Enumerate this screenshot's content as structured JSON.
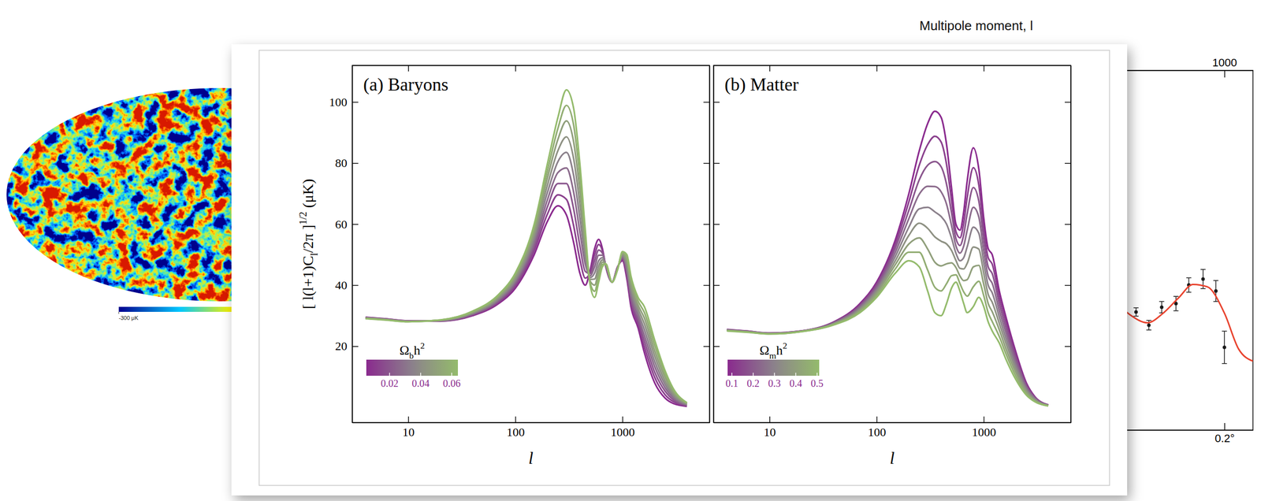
{
  "chart_data": [
    {
      "type": "map",
      "colorbar_range": [
        -300,
        300
      ],
      "colorbar_ticks": [
        {
          "value": -300,
          "label": "-300 μK"
        }
      ]
    },
    {
      "type": "line",
      "title": "(a) Baryons",
      "x_label": "l",
      "y_label": "[ l(l+1)Cl/2π ]1/2 (μK)",
      "log": "x",
      "xlim": [
        3,
        6500
      ],
      "xticks": [
        10,
        100,
        1000
      ],
      "ylim": [
        -5,
        112
      ],
      "yticks": [
        20,
        40,
        60,
        80,
        100
      ],
      "colorbar_label": "Ωbh2",
      "colorbar_range": [
        0.005,
        0.064
      ],
      "colorbar_ticks": [
        0.02,
        0.04,
        0.06
      ],
      "x": [
        4,
        6,
        10,
        20,
        40,
        70,
        100,
        150,
        200,
        250,
        300,
        350,
        400,
        450,
        500,
        550,
        600,
        650,
        700,
        800,
        900,
        1000,
        1100,
        1200,
        1400,
        1600,
        2000,
        2500,
        3000,
        4000
      ],
      "series": [
        {
          "color": "#8a2a8e",
          "values": [
            29.5,
            29.0,
            28.3,
            28.2,
            30.0,
            34.0,
            39.0,
            50.0,
            61.0,
            66.0,
            63.0,
            54.0,
            44.0,
            40.0,
            45.0,
            52.0,
            55.0,
            52.0,
            46.0,
            41.0,
            46.0,
            48.0,
            42,
            33.0,
            26.0,
            18.0,
            8.0,
            3.0,
            1.2,
            0.3
          ]
        },
        {
          "color": "#8a408d",
          "values": [
            29.4,
            29.0,
            28.3,
            28.3,
            30.2,
            34.4,
            39.6,
            51.3,
            63.4,
            69.6,
            68.1,
            59.5,
            48.5,
            42.3,
            44.4,
            50.0,
            53.3,
            51.3,
            46.1,
            41.0,
            45.9,
            48.4,
            43,
            34.3,
            27.3,
            19.9,
            9.8,
            4.1,
            1.8,
            0.5
          ]
        },
        {
          "color": "#8a568d",
          "values": [
            29.4,
            28.9,
            28.2,
            28.3,
            30.4,
            34.8,
            40.3,
            52.5,
            65.8,
            73.3,
            73.3,
            65.0,
            53.0,
            44.5,
            43.8,
            48.0,
            51.5,
            50.5,
            46.3,
            41.0,
            45.8,
            48.8,
            44,
            35.5,
            28.5,
            21.8,
            11.5,
            5.3,
            2.4,
            0.6
          ]
        },
        {
          "color": "#8b6b8c",
          "values": [
            29.3,
            28.9,
            28.2,
            28.4,
            30.6,
            35.1,
            40.9,
            53.8,
            68.1,
            76.9,
            78.4,
            70.5,
            57.5,
            46.8,
            43.1,
            46.0,
            49.8,
            49.8,
            46.4,
            41.0,
            45.6,
            49.1,
            45,
            36.8,
            29.8,
            23.6,
            13.3,
            6.4,
            3.0,
            0.8
          ]
        },
        {
          "color": "#8b808b",
          "values": [
            29.3,
            28.8,
            28.2,
            28.4,
            30.8,
            35.5,
            41.5,
            55.0,
            70.5,
            80.5,
            83.5,
            76.0,
            62.0,
            49.0,
            42.5,
            44.0,
            48.0,
            49.0,
            46.5,
            41.0,
            45.5,
            49.5,
            46,
            38.0,
            31.0,
            25.5,
            15.0,
            7.5,
            3.6,
            0.9
          ]
        },
        {
          "color": "#8e9183",
          "values": [
            29.2,
            28.8,
            28.1,
            28.5,
            30.9,
            35.9,
            42.1,
            56.3,
            72.9,
            84.1,
            88.6,
            81.5,
            66.5,
            51.3,
            41.9,
            42.0,
            46.3,
            48.3,
            46.6,
            41.0,
            45.4,
            49.9,
            47,
            39.3,
            32.3,
            27.4,
            16.8,
            8.6,
            4.2,
            1.1
          ]
        },
        {
          "color": "#909f7b",
          "values": [
            29.1,
            28.7,
            28.1,
            28.5,
            31.1,
            36.3,
            42.8,
            57.5,
            75.3,
            87.8,
            93.8,
            87.0,
            71.0,
            53.5,
            41.3,
            40.0,
            44.5,
            47.5,
            46.8,
            41.0,
            45.3,
            50.3,
            48,
            40.5,
            33.5,
            29.3,
            18.5,
            9.8,
            4.8,
            1.2
          ]
        },
        {
          "color": "#92ad73",
          "values": [
            29.1,
            28.7,
            28.0,
            28.6,
            31.3,
            36.6,
            43.4,
            58.8,
            77.6,
            91.4,
            98.9,
            92.5,
            75.5,
            55.8,
            40.6,
            38.0,
            42.8,
            46.8,
            46.9,
            41.0,
            45.1,
            50.6,
            49,
            41.8,
            34.8,
            31.1,
            20.3,
            10.9,
            5.4,
            1.4
          ]
        },
        {
          "color": "#94bb6c",
          "values": [
            29.0,
            28.6,
            28.0,
            28.6,
            31.5,
            37.0,
            44.0,
            60.0,
            80.0,
            95.0,
            104.0,
            98.0,
            80.0,
            58.0,
            40.0,
            36.0,
            41.0,
            46.0,
            47.0,
            41.0,
            45.0,
            51.0,
            50,
            43.0,
            36.0,
            33.0,
            22.0,
            12.0,
            6.0,
            1.5
          ]
        }
      ]
    },
    {
      "type": "line",
      "title": "(b) Matter",
      "x_label": "l",
      "log": "x",
      "tick_labels": "x",
      "xlim": [
        3,
        6500
      ],
      "xticks": [
        10,
        100,
        1000
      ],
      "ylim": [
        -5,
        112
      ],
      "yticks": [
        20,
        40,
        60,
        80,
        100
      ],
      "colorbar_label": "Ωmh2",
      "colorbar_range": [
        0.08,
        0.51
      ],
      "colorbar_ticks": [
        0.1,
        0.2,
        0.3,
        0.4,
        0.5
      ],
      "x": [
        4,
        6,
        10,
        20,
        40,
        70,
        100,
        150,
        200,
        250,
        300,
        350,
        400,
        450,
        500,
        550,
        600,
        650,
        700,
        800,
        900,
        1000,
        1100,
        1200,
        1400,
        1600,
        2000,
        2500,
        3000,
        4000
      ],
      "series": [
        {
          "color": "#8a2a8e",
          "values": [
            25.5,
            25.0,
            24.3,
            25.0,
            28.0,
            34.0,
            41.0,
            55.0,
            70.0,
            84.0,
            93.0,
            97.0,
            95.0,
            86.0,
            72.0,
            60.0,
            58.0,
            64.0,
            74.0,
            85.0,
            78.0,
            62.0,
            52,
            50.0,
            38.0,
            30.0,
            18.0,
            8.0,
            3.5,
            0.8
          ]
        },
        {
          "color": "#8a408d",
          "values": [
            25.4,
            25.0,
            24.3,
            25.0,
            27.9,
            33.6,
            40.4,
            53.6,
            67.3,
            79.3,
            86.1,
            88.8,
            86.9,
            79.5,
            67.9,
            57.6,
            55.5,
            60.3,
            68.6,
            78.5,
            72.8,
            58.4,
            49,
            46.9,
            35.9,
            28.3,
            16.9,
            7.5,
            3.3,
            0.8
          ]
        },
        {
          "color": "#8a568d",
          "values": [
            25.4,
            24.9,
            24.2,
            25.0,
            27.8,
            33.3,
            39.8,
            52.3,
            64.5,
            74.5,
            79.3,
            80.5,
            78.8,
            73.0,
            63.8,
            55.3,
            53.0,
            56.5,
            63.3,
            72.0,
            67.5,
            54.8,
            46,
            43.8,
            33.8,
            26.5,
            15.8,
            7.0,
            3.1,
            0.7
          ]
        },
        {
          "color": "#8b6b8c",
          "values": [
            25.3,
            24.9,
            24.2,
            24.9,
            27.6,
            32.9,
            39.1,
            50.9,
            61.8,
            69.8,
            72.4,
            72.3,
            70.6,
            66.5,
            59.6,
            52.9,
            50.5,
            52.8,
            57.9,
            65.5,
            62.3,
            51.1,
            43,
            40.6,
            31.6,
            24.8,
            14.6,
            6.5,
            2.9,
            0.7
          ]
        },
        {
          "color": "#8b808b",
          "values": [
            25.3,
            24.8,
            24.2,
            24.9,
            27.5,
            32.5,
            38.5,
            49.5,
            59.0,
            65.0,
            65.5,
            64.0,
            62.5,
            60.0,
            55.5,
            50.5,
            48.0,
            49.0,
            52.5,
            59.0,
            57.0,
            47.5,
            40,
            37.5,
            29.5,
            23.0,
            13.5,
            6.0,
            2.7,
            0.6
          ]
        },
        {
          "color": "#8e9183",
          "values": [
            25.2,
            24.8,
            24.1,
            24.9,
            27.4,
            32.1,
            37.9,
            48.1,
            56.3,
            60.3,
            58.6,
            55.8,
            54.4,
            53.5,
            51.4,
            48.1,
            45.5,
            45.3,
            47.1,
            52.5,
            51.8,
            43.9,
            37,
            34.4,
            27.4,
            21.3,
            12.4,
            5.5,
            2.4,
            0.6
          ]
        },
        {
          "color": "#909f7b",
          "values": [
            25.1,
            24.7,
            24.1,
            24.9,
            27.3,
            31.8,
            37.3,
            46.8,
            53.5,
            55.5,
            51.8,
            47.5,
            46.3,
            47.0,
            47.3,
            45.8,
            43.0,
            41.5,
            41.8,
            46.0,
            46.5,
            40.3,
            34,
            31.3,
            25.3,
            19.5,
            11.3,
            5.0,
            2.2,
            0.5
          ]
        },
        {
          "color": "#92ad73",
          "values": [
            25.1,
            24.7,
            24.0,
            24.8,
            27.1,
            31.4,
            36.6,
            45.4,
            50.8,
            50.8,
            44.9,
            39.3,
            38.1,
            40.5,
            43.1,
            43.4,
            40.5,
            37.8,
            36.4,
            39.5,
            41.3,
            36.6,
            31,
            28.1,
            23.1,
            17.8,
            10.1,
            4.5,
            2.0,
            0.5
          ]
        },
        {
          "color": "#94bb6c",
          "values": [
            25.0,
            24.6,
            24.0,
            24.8,
            27.0,
            31.0,
            36.0,
            44.0,
            48.0,
            46.0,
            38.0,
            31.0,
            30.0,
            34.0,
            39.0,
            41.0,
            38.0,
            34.0,
            31.0,
            33.0,
            36.0,
            33.0,
            28,
            25.0,
            21.0,
            16.0,
            9.0,
            4.0,
            1.8,
            0.4
          ]
        }
      ]
    },
    {
      "type": "scatter",
      "x_label": "Multipole moment, l",
      "tick_labels": "x",
      "xlim": [
        500,
        1100
      ],
      "xticks": [
        1000
      ],
      "x2lim": [
        0.35,
        0.17
      ],
      "x2ticks": [
        {
          "value": 0.2,
          "label": "0.2°"
        }
      ],
      "ylim": [
        0,
        6000
      ],
      "series": [
        {
          "type": "scatter",
          "marker": "circle",
          "color": "#1a1a1a",
          "x": [
            690,
            735,
            780,
            830,
            875,
            925,
            970,
            1000
          ],
          "values": [
            1970,
            1750,
            2050,
            2110,
            2420,
            2520,
            2320,
            1380
          ],
          "errors": [
            70,
            80,
            95,
            120,
            120,
            160,
            175,
            270
          ]
        },
        {
          "type": "line",
          "color": "#e8432e",
          "x": [
            630,
            670,
            730,
            785,
            840,
            890,
            940,
            1000,
            1050,
            1100
          ],
          "values": [
            2080,
            1920,
            1790,
            1950,
            2210,
            2430,
            2390,
            1950,
            1350,
            1150
          ]
        }
      ]
    }
  ]
}
